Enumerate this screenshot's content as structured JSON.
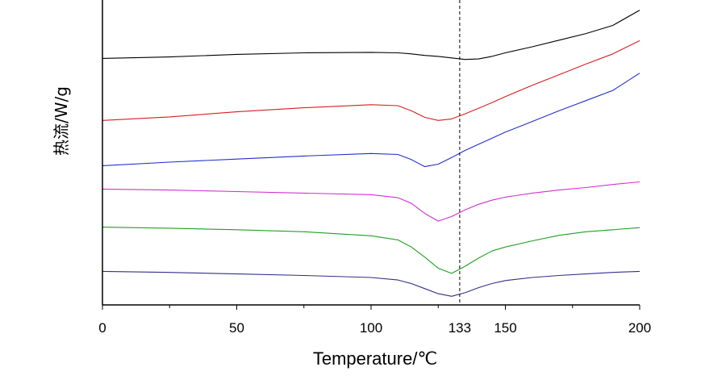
{
  "chart_data": {
    "type": "line",
    "xlabel": "Temperature/℃",
    "ylabel": "热流/W/g",
    "xlim": [
      0,
      200
    ],
    "x_ticks": [
      "0",
      "50",
      "100",
      "133",
      "150",
      "200"
    ],
    "reference_line": {
      "x": 133,
      "style": "dashed"
    },
    "y_ticks": [],
    "grid": false,
    "legend": "none",
    "x": [
      0,
      25,
      50,
      75,
      100,
      110,
      115,
      120,
      125,
      130,
      135,
      140,
      145,
      150,
      160,
      170,
      180,
      190,
      200
    ],
    "series": [
      {
        "color": "#000000",
        "values": [
          12.5,
          12.8,
          13.3,
          13.6,
          13.7,
          13.6,
          13.4,
          13.1,
          12.9,
          12.6,
          12.3,
          12.4,
          12.9,
          13.6,
          14.8,
          16.1,
          17.4,
          19.0,
          22.0
        ]
      },
      {
        "color": "#d42020",
        "values": [
          0.3,
          1.0,
          2.0,
          2.8,
          3.4,
          3.2,
          2.2,
          0.9,
          0.3,
          0.6,
          1.6,
          2.7,
          3.8,
          5.0,
          7.2,
          9.3,
          11.4,
          13.4,
          16.0
        ]
      },
      {
        "color": "#2030c8",
        "values": [
          -8.6,
          -7.9,
          -7.3,
          -6.7,
          -6.2,
          -6.4,
          -7.4,
          -8.8,
          -8.3,
          -7.0,
          -5.6,
          -4.4,
          -3.2,
          -2.0,
          0.1,
          2.2,
          4.2,
          6.2,
          9.6
        ]
      },
      {
        "color": "#d030d0",
        "values": [
          -13.2,
          -13.4,
          -13.7,
          -14.0,
          -14.3,
          -14.9,
          -16.0,
          -18.0,
          -19.5,
          -18.6,
          -17.3,
          -16.2,
          -15.4,
          -14.8,
          -14.0,
          -13.4,
          -12.9,
          -12.3,
          -11.8
        ]
      },
      {
        "color": "#20a020",
        "values": [
          -20.7,
          -20.9,
          -21.2,
          -21.6,
          -22.4,
          -23.2,
          -24.6,
          -26.6,
          -28.8,
          -29.8,
          -28.4,
          -26.8,
          -25.4,
          -24.6,
          -23.4,
          -22.3,
          -21.6,
          -21.2,
          -20.8
        ]
      },
      {
        "color": "#30308a",
        "values": [
          -29.4,
          -29.6,
          -29.9,
          -30.2,
          -30.6,
          -31.1,
          -31.8,
          -32.8,
          -33.8,
          -34.3,
          -33.6,
          -32.6,
          -31.8,
          -31.2,
          -30.6,
          -30.2,
          -29.9,
          -29.6,
          -29.4
        ]
      }
    ]
  }
}
